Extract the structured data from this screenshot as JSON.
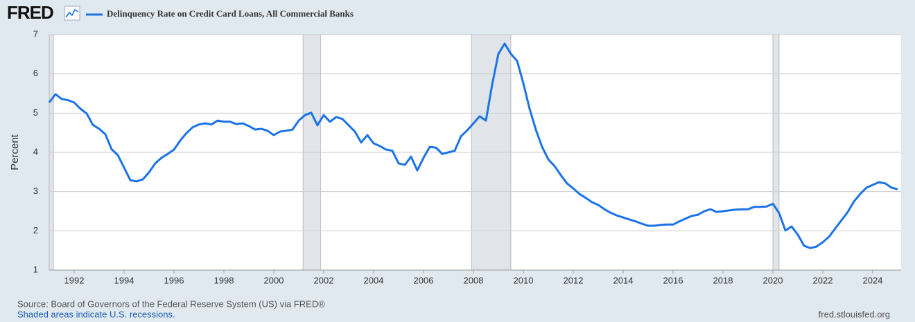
{
  "brand": "FRED",
  "chart_data": {
    "type": "line",
    "series": [
      {
        "name": "Delinquency Rate on Credit Card Loans, All Commercial Banks",
        "color": "#1a73e8",
        "values": [
          5.27,
          5.48,
          5.36,
          5.33,
          5.27,
          5.11,
          4.99,
          4.7,
          4.6,
          4.46,
          4.08,
          3.93,
          3.61,
          3.29,
          3.26,
          3.31,
          3.49,
          3.72,
          3.86,
          3.96,
          4.07,
          4.3,
          4.49,
          4.64,
          4.71,
          4.74,
          4.71,
          4.81,
          4.78,
          4.78,
          4.72,
          4.74,
          4.67,
          4.58,
          4.6,
          4.55,
          4.44,
          4.53,
          4.55,
          4.58,
          4.81,
          4.95,
          5.01,
          4.69,
          4.95,
          4.78,
          4.9,
          4.85,
          4.69,
          4.53,
          4.25,
          4.44,
          4.23,
          4.16,
          4.07,
          4.04,
          3.72,
          3.68,
          3.89,
          3.54,
          3.86,
          4.14,
          4.12,
          3.96,
          4.0,
          4.04,
          4.41,
          4.56,
          4.74,
          4.92,
          4.81,
          5.73,
          6.51,
          6.77,
          6.51,
          6.33,
          5.76,
          5.11,
          4.58,
          4.14,
          3.82,
          3.65,
          3.42,
          3.21,
          3.08,
          2.94,
          2.84,
          2.73,
          2.66,
          2.55,
          2.46,
          2.39,
          2.34,
          2.29,
          2.24,
          2.18,
          2.13,
          2.13,
          2.15,
          2.16,
          2.16,
          2.24,
          2.31,
          2.38,
          2.41,
          2.5,
          2.55,
          2.48,
          2.5,
          2.52,
          2.54,
          2.55,
          2.55,
          2.61,
          2.61,
          2.62,
          2.69,
          2.45,
          2.01,
          2.11,
          1.9,
          1.62,
          1.56,
          1.6,
          1.71,
          1.85,
          2.06,
          2.27,
          2.48,
          2.75,
          2.94,
          3.1,
          3.17,
          3.24,
          3.21,
          3.1,
          3.06
        ]
      }
    ],
    "x": [
      1991.0,
      1991.25,
      1991.5,
      1991.75,
      1992.0,
      1992.25,
      1992.5,
      1992.75,
      1993.0,
      1993.25,
      1993.5,
      1993.75,
      1994.0,
      1994.25,
      1994.5,
      1994.75,
      1995.0,
      1995.25,
      1995.5,
      1995.75,
      1996.0,
      1996.25,
      1996.5,
      1996.75,
      1997.0,
      1997.25,
      1997.5,
      1997.75,
      1998.0,
      1998.25,
      1998.5,
      1998.75,
      1999.0,
      1999.25,
      1999.5,
      1999.75,
      2000.0,
      2000.25,
      2000.5,
      2000.75,
      2001.0,
      2001.25,
      2001.5,
      2001.75,
      2002.0,
      2002.25,
      2002.5,
      2002.75,
      2003.0,
      2003.25,
      2003.5,
      2003.75,
      2004.0,
      2004.25,
      2004.5,
      2004.75,
      2005.0,
      2005.25,
      2005.5,
      2005.75,
      2006.0,
      2006.25,
      2006.5,
      2006.75,
      2007.0,
      2007.25,
      2007.5,
      2007.75,
      2008.0,
      2008.25,
      2008.5,
      2008.75,
      2009.0,
      2009.25,
      2009.5,
      2009.75,
      2010.0,
      2010.25,
      2010.5,
      2010.75,
      2011.0,
      2011.25,
      2011.5,
      2011.75,
      2012.0,
      2012.25,
      2012.5,
      2012.75,
      2013.0,
      2013.25,
      2013.5,
      2013.75,
      2014.0,
      2014.25,
      2014.5,
      2014.75,
      2015.0,
      2015.25,
      2015.5,
      2015.75,
      2016.0,
      2016.25,
      2016.5,
      2016.75,
      2017.0,
      2017.25,
      2017.5,
      2017.75,
      2018.0,
      2018.25,
      2018.5,
      2018.75,
      2019.0,
      2019.25,
      2019.5,
      2019.75,
      2020.0,
      2020.25,
      2020.5,
      2020.75,
      2021.0,
      2021.25,
      2021.5,
      2021.75,
      2022.0,
      2022.25,
      2022.5,
      2022.75,
      2023.0,
      2023.25,
      2023.5,
      2023.75,
      2024.0,
      2024.25,
      2024.5,
      2024.75,
      2025.0
    ],
    "recessions": [
      [
        1991.0,
        1991.17
      ],
      [
        2001.17,
        2001.87
      ],
      [
        2007.92,
        2009.5
      ],
      [
        2020.0,
        2020.25
      ]
    ],
    "y_label": "Percent",
    "xlim": [
      1991.0,
      2025.14
    ],
    "xticks": [
      1992,
      1994,
      1996,
      1998,
      2000,
      2002,
      2004,
      2006,
      2008,
      2010,
      2012,
      2014,
      2016,
      2018,
      2020,
      2022,
      2024
    ],
    "ylim": [
      1,
      7
    ],
    "yticks": [
      1,
      2,
      3,
      4,
      5,
      6,
      7
    ],
    "grid": true
  },
  "footer": {
    "source": "Source: Board of Governors of the Federal Reserve System (US) via FRED®",
    "note": "Shaded areas indicate U.S. recessions.",
    "url": "fred.stlouisfed.org"
  }
}
